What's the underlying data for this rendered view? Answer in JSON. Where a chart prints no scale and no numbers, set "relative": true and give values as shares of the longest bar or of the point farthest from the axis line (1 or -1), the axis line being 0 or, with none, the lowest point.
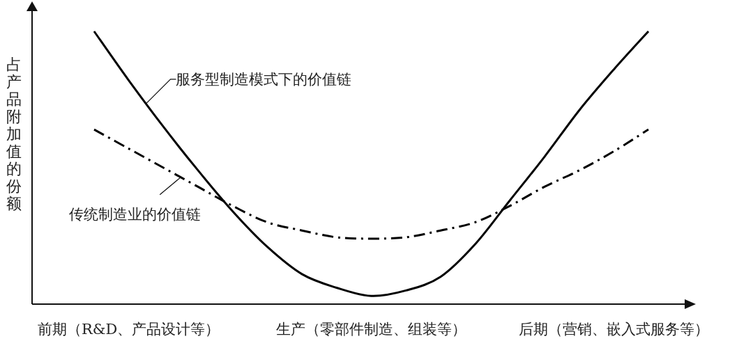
{
  "chart_data": {
    "type": "line",
    "relative": true,
    "ylabel": "占产品附加值的份额",
    "legend": false,
    "categories": [
      null,
      "前期（R&D、产品设计等）",
      null,
      null,
      null,
      null,
      null,
      null,
      "生产（零部件制造、组装等）",
      null,
      null,
      null,
      null,
      null,
      null,
      "后期（营销、嵌入式服务等）",
      null
    ],
    "series": [
      {
        "name": "服务型制造模式下的价值链",
        "color": "#000000",
        "line_style": "solid",
        "values": [
          1.0,
          0.82,
          0.65,
          0.49,
          0.34,
          0.21,
          0.11,
          0.06,
          0.03,
          0.05,
          0.1,
          0.22,
          0.38,
          0.54,
          0.71,
          0.86,
          1.0
        ]
      },
      {
        "name": "传统制造业的价值链",
        "color": "#000000",
        "line_style": "dashed",
        "values": [
          0.64,
          0.57,
          0.5,
          0.43,
          0.36,
          0.3,
          0.27,
          0.245,
          0.24,
          0.245,
          0.27,
          0.3,
          0.36,
          0.43,
          0.49,
          0.56,
          0.64
        ]
      }
    ]
  }
}
